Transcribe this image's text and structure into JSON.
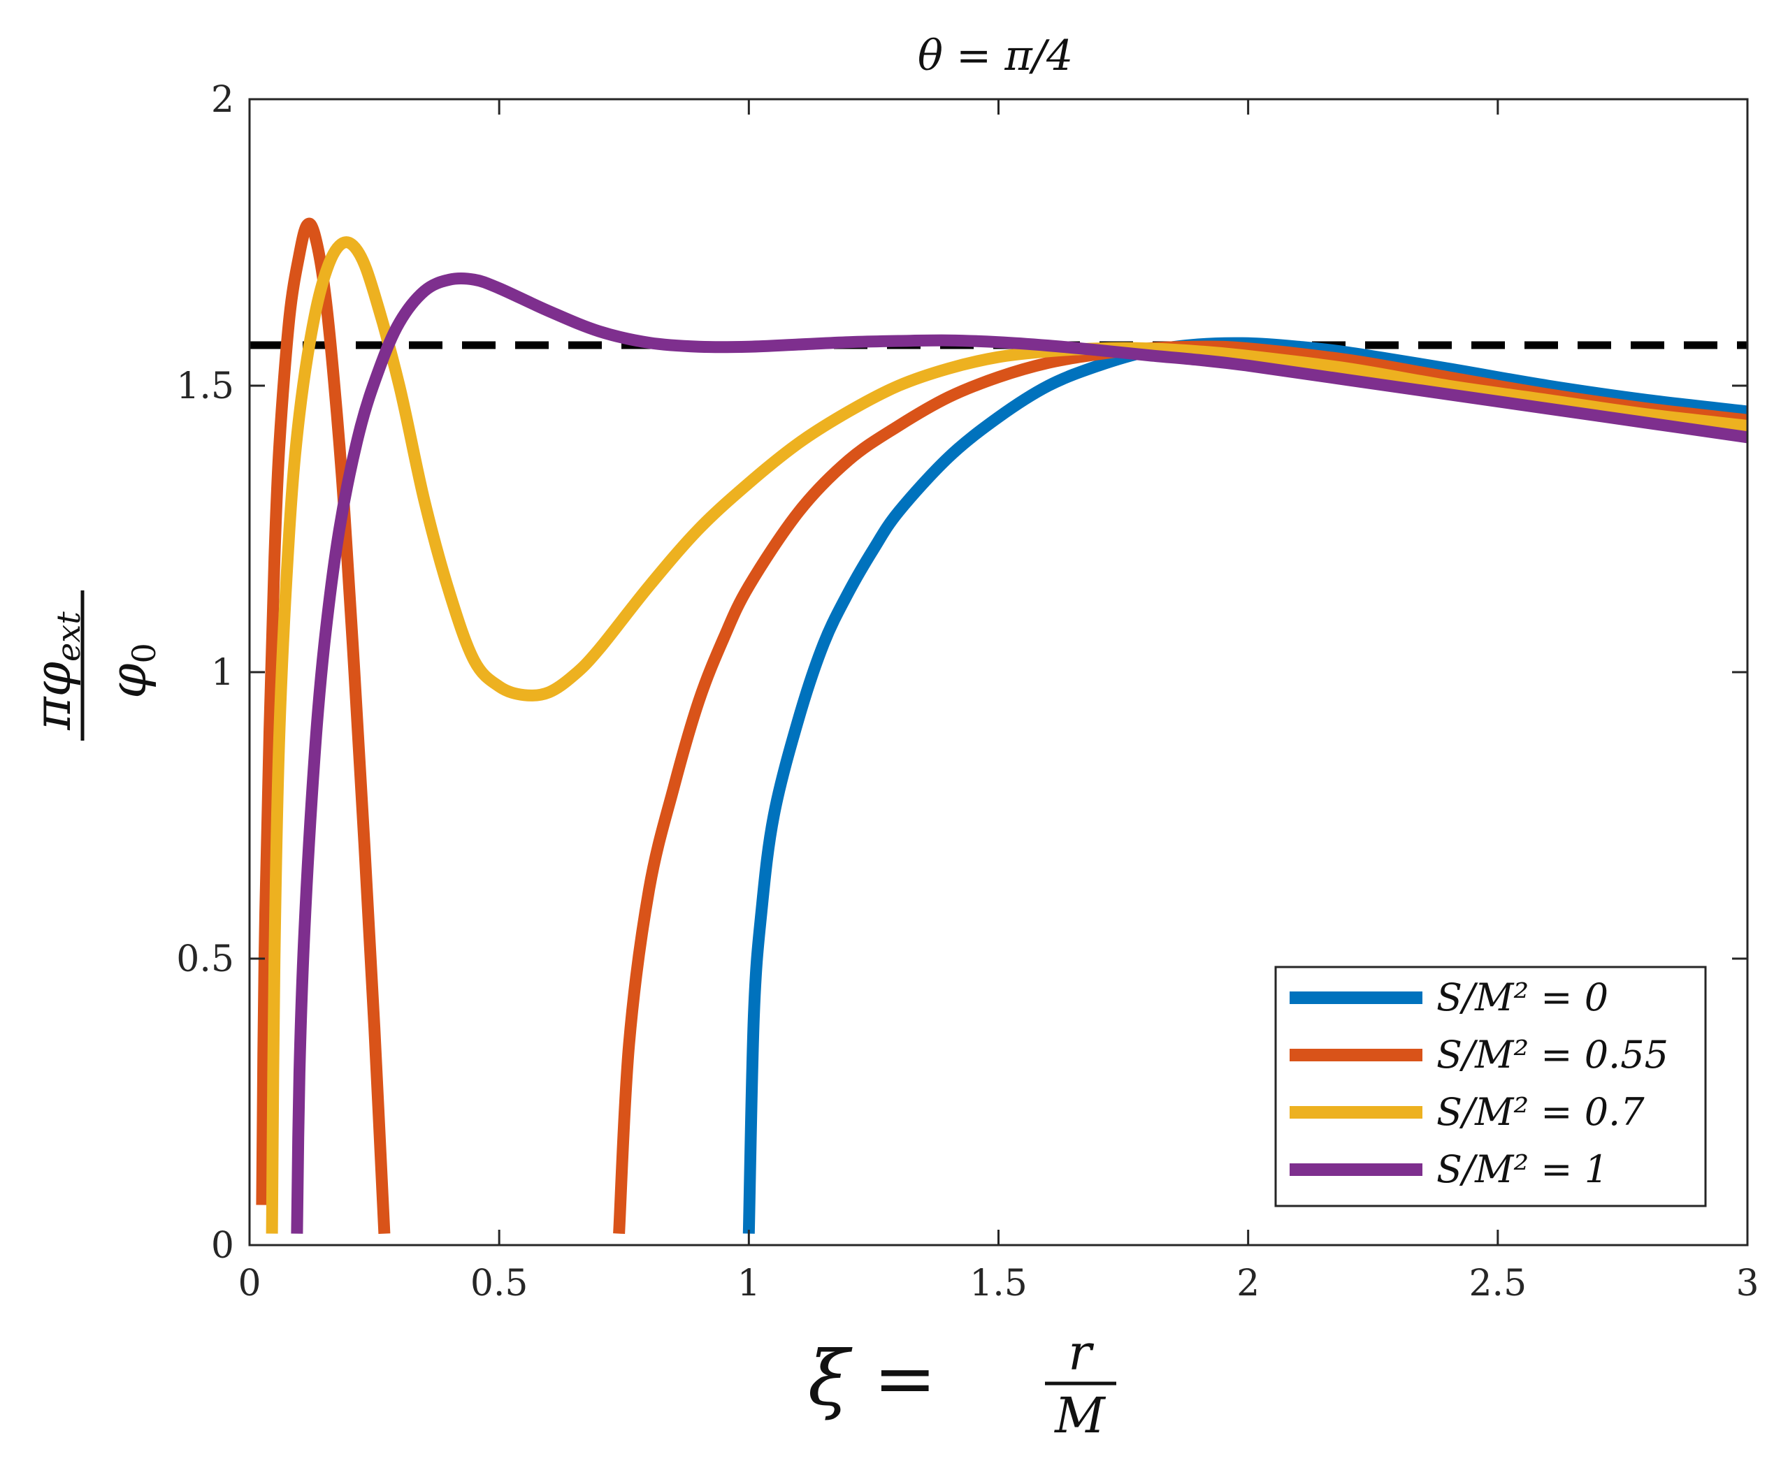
{
  "chart_data": {
    "type": "line",
    "title": "θ = π/4",
    "xlabel": {
      "lhs": "ξ =",
      "num": "r",
      "den": "M"
    },
    "ylabel": {
      "num": "πφ",
      "num_sub": "ext",
      "den": "φ",
      "den_sub": "0"
    },
    "xlim": [
      0,
      3
    ],
    "ylim": [
      0,
      2
    ],
    "xticks": [
      0,
      0.5,
      1,
      1.5,
      2,
      2.5,
      3
    ],
    "xtick_labels": [
      "0",
      "0.5",
      "1",
      "1.5",
      "2",
      "2.5",
      "3"
    ],
    "yticks": [
      0,
      0.5,
      1,
      1.5,
      2
    ],
    "ytick_labels": [
      "0",
      "0.5",
      "1",
      "1.5",
      "2"
    ],
    "grid": false,
    "legend_position": "bottom-right",
    "reference_line": {
      "y": 1.5708,
      "style": "dashed",
      "color": "#000000"
    },
    "series": [
      {
        "name": "S/M² = 0",
        "color": "#0072BD",
        "segments": [
          [
            [
              1.0,
              0.02
            ],
            [
              1.01,
              0.4
            ],
            [
              1.025,
              0.58
            ],
            [
              1.05,
              0.75
            ],
            [
              1.1,
              0.92
            ],
            [
              1.15,
              1.05
            ],
            [
              1.2,
              1.14
            ],
            [
              1.25,
              1.215
            ],
            [
              1.3,
              1.28
            ],
            [
              1.4,
              1.375
            ],
            [
              1.5,
              1.445
            ],
            [
              1.6,
              1.5
            ],
            [
              1.7,
              1.535
            ],
            [
              1.8,
              1.56
            ],
            [
              1.9,
              1.572
            ],
            [
              2.0,
              1.574
            ],
            [
              2.1,
              1.568
            ],
            [
              2.2,
              1.558
            ],
            [
              2.4,
              1.53
            ],
            [
              2.6,
              1.5
            ],
            [
              2.8,
              1.475
            ],
            [
              3.0,
              1.455
            ]
          ]
        ]
      },
      {
        "name": "S/M² = 0.55",
        "color": "#D95319",
        "segments": [
          [
            [
              0.025,
              0.07
            ],
            [
              0.03,
              0.5
            ],
            [
              0.04,
              0.9
            ],
            [
              0.05,
              1.2
            ],
            [
              0.06,
              1.4
            ],
            [
              0.08,
              1.62
            ],
            [
              0.1,
              1.73
            ],
            [
              0.115,
              1.78
            ],
            [
              0.13,
              1.765
            ],
            [
              0.15,
              1.67
            ],
            [
              0.17,
              1.5
            ],
            [
              0.19,
              1.28
            ],
            [
              0.21,
              1.0
            ],
            [
              0.23,
              0.7
            ],
            [
              0.25,
              0.38
            ],
            [
              0.27,
              0.02
            ]
          ],
          [
            [
              0.74,
              0.02
            ],
            [
              0.76,
              0.35
            ],
            [
              0.8,
              0.62
            ],
            [
              0.85,
              0.8
            ],
            [
              0.9,
              0.95
            ],
            [
              0.95,
              1.06
            ],
            [
              1.0,
              1.15
            ],
            [
              1.1,
              1.28
            ],
            [
              1.2,
              1.37
            ],
            [
              1.3,
              1.43
            ],
            [
              1.4,
              1.48
            ],
            [
              1.5,
              1.515
            ],
            [
              1.6,
              1.54
            ],
            [
              1.7,
              1.555
            ],
            [
              1.8,
              1.565
            ],
            [
              1.9,
              1.568
            ],
            [
              2.0,
              1.565
            ],
            [
              2.2,
              1.545
            ],
            [
              2.4,
              1.515
            ],
            [
              2.6,
              1.485
            ],
            [
              2.8,
              1.46
            ],
            [
              3.0,
              1.44
            ]
          ]
        ]
      },
      {
        "name": "S/M² = 0.7",
        "color": "#EDB120",
        "segments": [
          [
            [
              0.045,
              0.02
            ],
            [
              0.05,
              0.5
            ],
            [
              0.06,
              0.9
            ],
            [
              0.08,
              1.25
            ],
            [
              0.1,
              1.45
            ],
            [
              0.13,
              1.62
            ],
            [
              0.16,
              1.715
            ],
            [
              0.19,
              1.75
            ],
            [
              0.22,
              1.73
            ],
            [
              0.25,
              1.66
            ],
            [
              0.3,
              1.5
            ],
            [
              0.35,
              1.3
            ],
            [
              0.4,
              1.14
            ],
            [
              0.45,
              1.02
            ],
            [
              0.5,
              0.975
            ],
            [
              0.55,
              0.96
            ],
            [
              0.6,
              0.965
            ],
            [
              0.65,
              0.995
            ],
            [
              0.7,
              1.04
            ],
            [
              0.8,
              1.15
            ],
            [
              0.9,
              1.25
            ],
            [
              1.0,
              1.33
            ],
            [
              1.1,
              1.4
            ],
            [
              1.2,
              1.455
            ],
            [
              1.3,
              1.5
            ],
            [
              1.4,
              1.53
            ],
            [
              1.5,
              1.55
            ],
            [
              1.6,
              1.56
            ],
            [
              1.7,
              1.565
            ],
            [
              1.8,
              1.565
            ],
            [
              1.9,
              1.56
            ],
            [
              2.0,
              1.552
            ],
            [
              2.2,
              1.53
            ],
            [
              2.4,
              1.5
            ],
            [
              2.6,
              1.475
            ],
            [
              2.8,
              1.45
            ],
            [
              3.0,
              1.43
            ]
          ]
        ]
      },
      {
        "name": "S/M² = 1",
        "color": "#7E2F8E",
        "segments": [
          [
            [
              0.095,
              0.02
            ],
            [
              0.1,
              0.3
            ],
            [
              0.11,
              0.55
            ],
            [
              0.13,
              0.85
            ],
            [
              0.15,
              1.05
            ],
            [
              0.18,
              1.25
            ],
            [
              0.22,
              1.42
            ],
            [
              0.26,
              1.53
            ],
            [
              0.3,
              1.61
            ],
            [
              0.35,
              1.665
            ],
            [
              0.4,
              1.685
            ],
            [
              0.45,
              1.685
            ],
            [
              0.5,
              1.67
            ],
            [
              0.6,
              1.63
            ],
            [
              0.7,
              1.595
            ],
            [
              0.8,
              1.575
            ],
            [
              0.9,
              1.568
            ],
            [
              1.0,
              1.568
            ],
            [
              1.1,
              1.572
            ],
            [
              1.2,
              1.576
            ],
            [
              1.3,
              1.578
            ],
            [
              1.4,
              1.579
            ],
            [
              1.5,
              1.576
            ],
            [
              1.6,
              1.57
            ],
            [
              1.7,
              1.562
            ],
            [
              1.8,
              1.553
            ],
            [
              1.9,
              1.545
            ],
            [
              2.0,
              1.535
            ],
            [
              2.2,
              1.51
            ],
            [
              2.4,
              1.485
            ],
            [
              2.6,
              1.46
            ],
            [
              2.8,
              1.435
            ],
            [
              3.0,
              1.41
            ]
          ]
        ]
      }
    ]
  }
}
